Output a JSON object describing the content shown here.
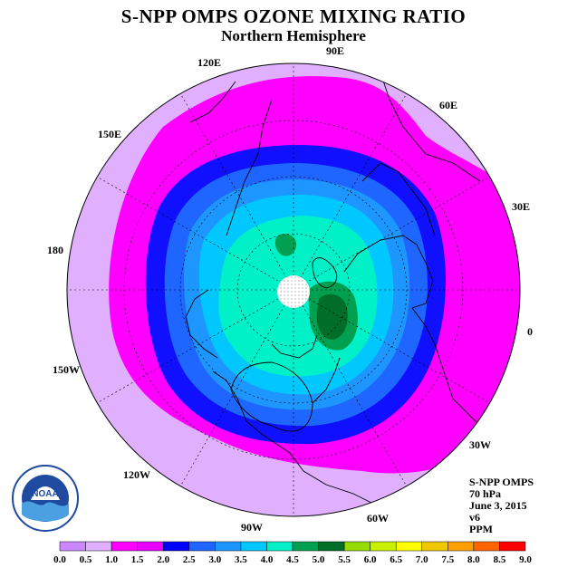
{
  "title": "S-NPP OMPS OZONE MIXING RATIO",
  "subtitle": "Northern Hemisphere",
  "longitude_labels": [
    "90E",
    "60E",
    "30E",
    "0",
    "30W",
    "60W",
    "90W",
    "120W",
    "150W",
    "180",
    "150E",
    "120E"
  ],
  "info": {
    "instrument": "S-NPP OMPS",
    "level": "70 hPa",
    "date": "June 3, 2015",
    "version": "v6",
    "units": "PPM"
  },
  "logo_text": "NOAA",
  "colorbar": {
    "tick_labels": [
      "0.0",
      "0.5",
      "1.0",
      "1.5",
      "2.0",
      "2.5",
      "3.0",
      "3.5",
      "4.0",
      "4.5",
      "5.0",
      "5.5",
      "6.0",
      "6.5",
      "7.0",
      "7.5",
      "8.0",
      "8.5",
      "9.0"
    ],
    "colors": [
      "#cc88ff",
      "#e0b0ff",
      "#ff00ff",
      "#e800ff",
      "#0000ff",
      "#1e66ff",
      "#1e96ff",
      "#00c8ff",
      "#00f0c8",
      "#00a050",
      "#006e28",
      "#96dc00",
      "#c8f000",
      "#ffff00",
      "#f0c800",
      "#ffa000",
      "#ff6400",
      "#ff0000",
      "#8b5a3c"
    ]
  },
  "map": {
    "center": "North Pole",
    "missing_data_region": "polar night dots",
    "value_bands_ppm": [
      1.0,
      1.5,
      2.0,
      2.5,
      3.0,
      3.5,
      4.0,
      4.5
    ]
  }
}
